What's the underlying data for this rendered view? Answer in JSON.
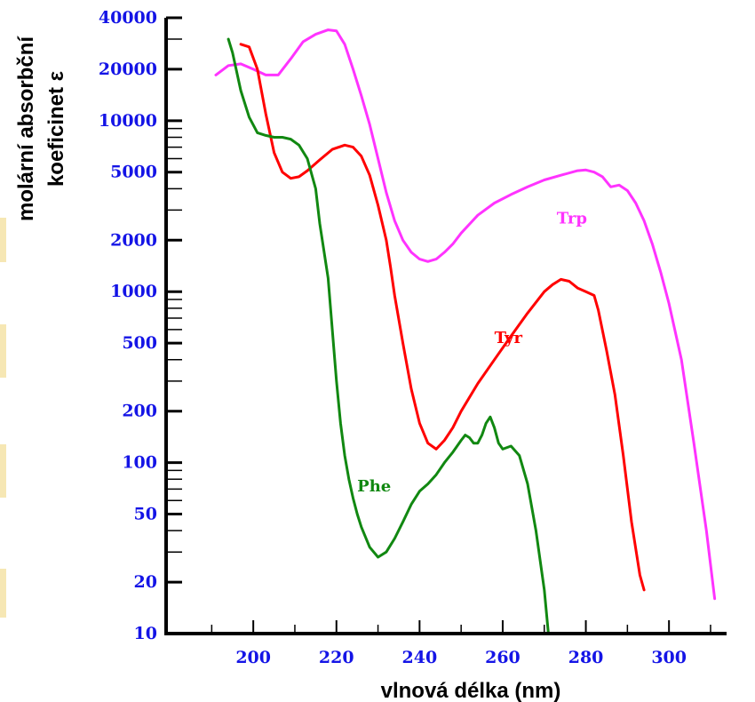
{
  "chart_data": {
    "type": "line",
    "xlabel": "vlnová délka (nm)",
    "ylabel_lines": [
      "molární absorbční",
      "koeficinet  ε"
    ],
    "x_scale": "linear",
    "y_scale": "log",
    "xlim": [
      188,
      313
    ],
    "ylim": [
      10,
      40000
    ],
    "x_ticks": [
      200,
      220,
      240,
      260,
      280,
      300
    ],
    "y_ticks": [
      10,
      20,
      50,
      100,
      200,
      500,
      1000,
      2000,
      5000,
      10000,
      20000,
      40000
    ],
    "y_tick_labels": [
      "10",
      "20",
      "50",
      "100",
      "200",
      "500",
      "1000",
      "2000",
      "5000",
      "10000",
      "20000",
      "40000"
    ],
    "grid": false,
    "legend": "none",
    "series": [
      {
        "name": "Trp",
        "color": "#ff33ff",
        "x": [
          191,
          194,
          197,
          200,
          203,
          206,
          209,
          212,
          215,
          218,
          220,
          222,
          224,
          226,
          228,
          230,
          232,
          234,
          236,
          238,
          240,
          242,
          244,
          246,
          248,
          250,
          254,
          258,
          262,
          266,
          270,
          274,
          278,
          280,
          282,
          284,
          286,
          288,
          290,
          292,
          294,
          296,
          298,
          300,
          303,
          306,
          309,
          311
        ],
        "y": [
          18500,
          21000,
          21500,
          20000,
          18500,
          18500,
          23000,
          29000,
          32000,
          34000,
          33500,
          28000,
          20000,
          14000,
          9500,
          6000,
          3800,
          2600,
          2000,
          1700,
          1550,
          1500,
          1550,
          1700,
          1900,
          2200,
          2800,
          3300,
          3700,
          4100,
          4500,
          4800,
          5100,
          5150,
          5000,
          4700,
          4100,
          4200,
          3900,
          3300,
          2600,
          1900,
          1300,
          850,
          400,
          130,
          40,
          16
        ]
      },
      {
        "name": "Tyr",
        "color": "#ff0000",
        "x": [
          197,
          199,
          201,
          203,
          205,
          207,
          209,
          211,
          213,
          216,
          219,
          222,
          224,
          226,
          228,
          230,
          232,
          233,
          234,
          236,
          238,
          240,
          242,
          244,
          246,
          248,
          250,
          254,
          258,
          262,
          266,
          270,
          272,
          274,
          276,
          278,
          280,
          282,
          283,
          285,
          287,
          289,
          291,
          293,
          294
        ],
        "y": [
          28000,
          27000,
          20000,
          11000,
          6500,
          5000,
          4600,
          4700,
          5100,
          5900,
          6800,
          7200,
          7000,
          6200,
          4800,
          3200,
          2000,
          1400,
          950,
          500,
          270,
          170,
          130,
          120,
          135,
          160,
          200,
          290,
          400,
          550,
          750,
          1000,
          1100,
          1180,
          1150,
          1050,
          1000,
          950,
          780,
          450,
          250,
          110,
          45,
          22,
          18
        ]
      },
      {
        "name": "Phe",
        "color": "#118811",
        "x": [
          194,
          195,
          197,
          199,
          201,
          203,
          205,
          207,
          209,
          211,
          213,
          215,
          216,
          218,
          219,
          220,
          221,
          222,
          223,
          224,
          225,
          226,
          228,
          230,
          232,
          234,
          236,
          238,
          240,
          242,
          244,
          246,
          248,
          250,
          251,
          252,
          253,
          254,
          255,
          256,
          257,
          258,
          259,
          260,
          262,
          264,
          266,
          268,
          270,
          271
        ],
        "y": [
          30000,
          25000,
          15000,
          10500,
          8500,
          8200,
          8000,
          8000,
          7800,
          7200,
          6000,
          4000,
          2500,
          1200,
          600,
          300,
          170,
          110,
          80,
          62,
          50,
          42,
          32,
          28,
          30,
          36,
          45,
          57,
          68,
          75,
          85,
          100,
          115,
          135,
          145,
          140,
          130,
          130,
          145,
          170,
          185,
          160,
          130,
          120,
          125,
          110,
          75,
          40,
          18,
          10
        ]
      }
    ],
    "annotations": [
      {
        "text": "Trp",
        "x": 273,
        "y": 2500
      },
      {
        "text": "Tyr",
        "x": 258,
        "y": 500
      },
      {
        "text": "Phe",
        "x": 225,
        "y": 68
      }
    ]
  }
}
